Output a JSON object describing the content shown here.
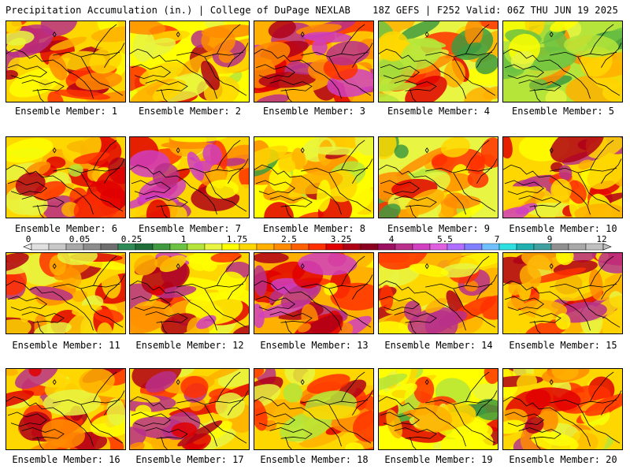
{
  "header": {
    "title": "Precipitation Accumulation (in.) | College of DuPage NEXLAB",
    "run_info": "18Z GEFS | F252 Valid: 06Z THU JUN 19 2025"
  },
  "panels": [
    {
      "label": "Ensemble Member: 1",
      "intensity": 0.62
    },
    {
      "label": "Ensemble Member: 2",
      "intensity": 0.52
    },
    {
      "label": "Ensemble Member: 3",
      "intensity": 0.7
    },
    {
      "label": "Ensemble Member: 4",
      "intensity": 0.38
    },
    {
      "label": "Ensemble Member: 5",
      "intensity": 0.25
    },
    {
      "label": "Ensemble Member: 6",
      "intensity": 0.55
    },
    {
      "label": "Ensemble Member: 7",
      "intensity": 0.65
    },
    {
      "label": "Ensemble Member: 8",
      "intensity": 0.45
    },
    {
      "label": "Ensemble Member: 9",
      "intensity": 0.4
    },
    {
      "label": "Ensemble Member: 10",
      "intensity": 0.62
    },
    {
      "label": "Ensemble Member: 11",
      "intensity": 0.6
    },
    {
      "label": "Ensemble Member: 12",
      "intensity": 0.62
    },
    {
      "label": "Ensemble Member: 13",
      "intensity": 0.72
    },
    {
      "label": "Ensemble Member: 14",
      "intensity": 0.58
    },
    {
      "label": "Ensemble Member: 15",
      "intensity": 0.55
    },
    {
      "label": "Ensemble Member: 16",
      "intensity": 0.6
    },
    {
      "label": "Ensemble Member: 17",
      "intensity": 0.58
    },
    {
      "label": "Ensemble Member: 18",
      "intensity": 0.55
    },
    {
      "label": "Ensemble Member: 19",
      "intensity": 0.45
    },
    {
      "label": "Ensemble Member: 20",
      "intensity": 0.55
    }
  ],
  "colorbar": {
    "ticks": [
      "0",
      "0.05",
      "0.25",
      "1",
      "1.75",
      "2.5",
      "3.25",
      "4",
      "5.5",
      "7",
      "9",
      "12"
    ],
    "colors": [
      "#e0e0e0",
      "#c8c8c8",
      "#a8a8a8",
      "#8c8c8c",
      "#6e6e6e",
      "#2e8b57",
      "#1f6e3a",
      "#3f9a3f",
      "#6cc242",
      "#b5e53a",
      "#e8f542",
      "#ffff00",
      "#ffd700",
      "#ffb000",
      "#ff8c00",
      "#ff6000",
      "#ff3000",
      "#e00000",
      "#b00018",
      "#8b0020",
      "#9b1060",
      "#b8308a",
      "#d040c0",
      "#e060e0",
      "#b070ff",
      "#8080ff",
      "#70c0ff",
      "#30e0e0",
      "#20b0b0",
      "#40a0a0",
      "#909090",
      "#a8a8a8",
      "#c0c0c0"
    ]
  }
}
